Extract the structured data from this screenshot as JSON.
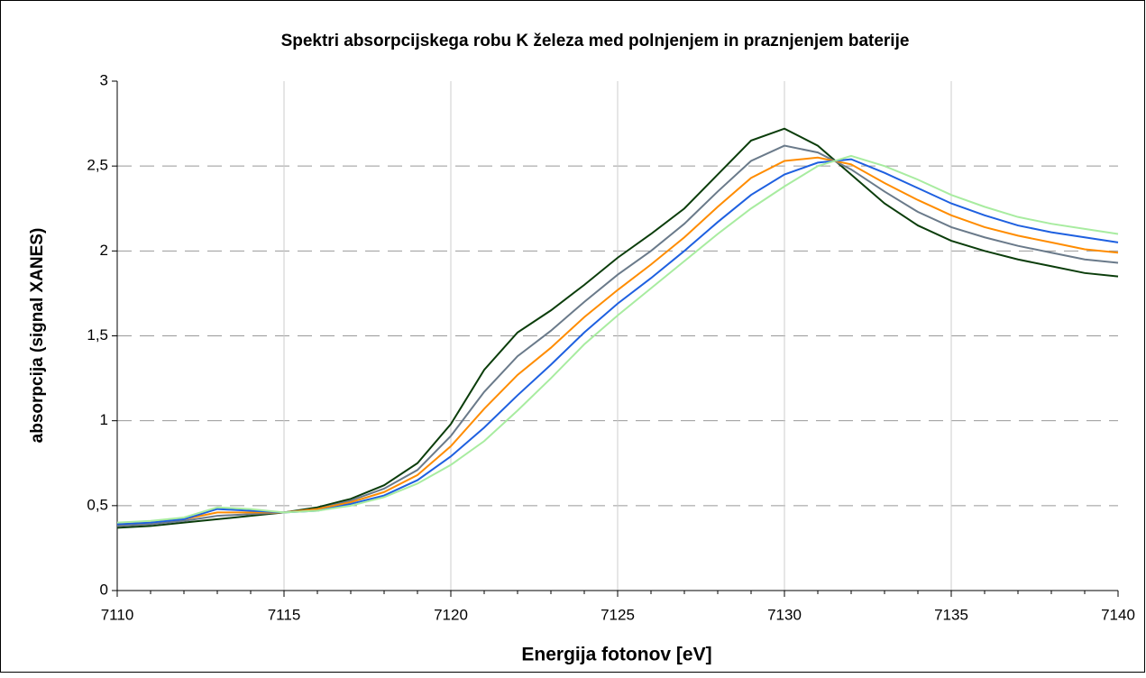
{
  "chart_data": {
    "type": "line",
    "title": "Spektri absorpcijskega robu K železa med polnjenjem in praznjenjem baterije",
    "xlabel": "Energija fotonov [eV]",
    "ylabel": "absorpcija (signal XANES)",
    "x": [
      7110,
      7111,
      7112,
      7113,
      7114,
      7115,
      7116,
      7117,
      7118,
      7119,
      7120,
      7121,
      7122,
      7123,
      7124,
      7125,
      7126,
      7127,
      7128,
      7129,
      7130,
      7131,
      7132,
      7133,
      7134,
      7135,
      7136,
      7137,
      7138,
      7139,
      7140
    ],
    "series": [
      {
        "color": "#0b3d0b",
        "values": [
          0.37,
          0.38,
          0.4,
          0.42,
          0.44,
          0.46,
          0.49,
          0.54,
          0.62,
          0.75,
          0.98,
          1.3,
          1.52,
          1.65,
          1.8,
          1.96,
          2.1,
          2.25,
          2.45,
          2.65,
          2.72,
          2.62,
          2.45,
          2.28,
          2.15,
          2.06,
          2.0,
          1.95,
          1.91,
          1.87,
          1.85
        ]
      },
      {
        "color": "#6a7a8a",
        "values": [
          0.38,
          0.39,
          0.41,
          0.44,
          0.45,
          0.46,
          0.48,
          0.53,
          0.6,
          0.71,
          0.91,
          1.17,
          1.38,
          1.53,
          1.7,
          1.86,
          2.0,
          2.16,
          2.35,
          2.53,
          2.62,
          2.58,
          2.48,
          2.35,
          2.23,
          2.14,
          2.08,
          2.03,
          1.99,
          1.95,
          1.93
        ]
      },
      {
        "color": "#ff8c00",
        "values": [
          0.39,
          0.4,
          0.42,
          0.46,
          0.46,
          0.46,
          0.48,
          0.52,
          0.58,
          0.68,
          0.85,
          1.07,
          1.27,
          1.43,
          1.61,
          1.77,
          1.92,
          2.08,
          2.26,
          2.43,
          2.53,
          2.55,
          2.51,
          2.4,
          2.3,
          2.21,
          2.14,
          2.09,
          2.05,
          2.01,
          1.99
        ]
      },
      {
        "color": "#1e60e0",
        "values": [
          0.39,
          0.4,
          0.42,
          0.48,
          0.47,
          0.46,
          0.47,
          0.51,
          0.56,
          0.65,
          0.79,
          0.96,
          1.15,
          1.33,
          1.52,
          1.69,
          1.84,
          2.0,
          2.17,
          2.33,
          2.45,
          2.52,
          2.54,
          2.46,
          2.37,
          2.28,
          2.21,
          2.15,
          2.11,
          2.08,
          2.05
        ]
      },
      {
        "color": "#a8eca0",
        "values": [
          0.4,
          0.41,
          0.43,
          0.49,
          0.48,
          0.46,
          0.47,
          0.5,
          0.55,
          0.63,
          0.74,
          0.88,
          1.06,
          1.25,
          1.45,
          1.62,
          1.78,
          1.94,
          2.1,
          2.25,
          2.38,
          2.5,
          2.56,
          2.5,
          2.42,
          2.33,
          2.26,
          2.2,
          2.16,
          2.13,
          2.1
        ]
      }
    ],
    "xlim": [
      7110,
      7140
    ],
    "xticks": [
      7110,
      7115,
      7120,
      7125,
      7130,
      7135,
      7140
    ],
    "ylim": [
      0,
      3
    ],
    "yticks": [
      0,
      {
        "value": 0.5,
        "label": "0,5"
      },
      1,
      {
        "value": 1.5,
        "label": "1,5"
      },
      2,
      {
        "value": 2.5,
        "label": "2,5"
      },
      3
    ],
    "grid": true
  }
}
